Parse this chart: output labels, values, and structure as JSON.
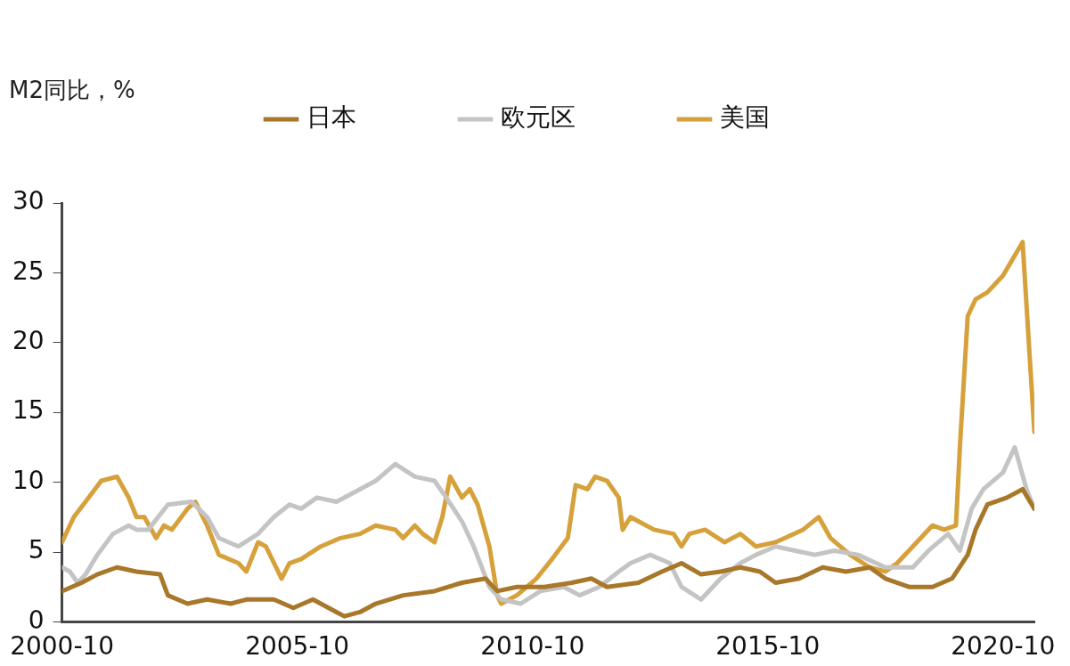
{
  "chart_data": {
    "type": "line",
    "ylabel": "M2同比，%",
    "legend": "top",
    "grid": false,
    "marker": "none",
    "line_style": "solid",
    "xlim": [
      "2000-10",
      "2021-06"
    ],
    "xticks": [
      "2000-10",
      "2005-10",
      "2010-10",
      "2015-10",
      "2020-10"
    ],
    "ylim": [
      0,
      30
    ],
    "yticks": [
      0,
      5,
      10,
      15,
      20,
      25,
      30
    ],
    "series": [
      {
        "name": "日本",
        "color": "#a8772a",
        "x": [
          "2000-10",
          "2001-03",
          "2001-07",
          "2001-12",
          "2002-05",
          "2002-11",
          "2003-01",
          "2003-06",
          "2003-11",
          "2004-05",
          "2004-09",
          "2005-04",
          "2005-09",
          "2006-02",
          "2006-08",
          "2006-10",
          "2007-02",
          "2007-06",
          "2008-01",
          "2008-09",
          "2009-04",
          "2009-10",
          "2010-01",
          "2010-06",
          "2011-01",
          "2011-08",
          "2012-01",
          "2012-05",
          "2013-01",
          "2013-07",
          "2013-12",
          "2014-05",
          "2014-10",
          "2015-03",
          "2015-08",
          "2015-12",
          "2016-06",
          "2016-12",
          "2017-06",
          "2017-12",
          "2018-04",
          "2018-10",
          "2019-04",
          "2019-09",
          "2020-01",
          "2020-03",
          "2020-06",
          "2020-11",
          "2021-03",
          "2021-06"
        ],
        "values": [
          2.2,
          2.8,
          3.4,
          3.9,
          3.6,
          3.4,
          1.9,
          1.3,
          1.6,
          1.3,
          1.6,
          1.6,
          1.0,
          1.6,
          0.7,
          0.4,
          0.7,
          1.3,
          1.9,
          2.2,
          2.8,
          3.1,
          2.2,
          2.5,
          2.5,
          2.8,
          3.1,
          2.5,
          2.8,
          3.6,
          4.2,
          3.4,
          3.6,
          3.9,
          3.6,
          2.8,
          3.1,
          3.9,
          3.6,
          3.9,
          3.1,
          2.5,
          2.5,
          3.1,
          4.8,
          6.6,
          8.4,
          8.9,
          9.5,
          8.1
        ]
      },
      {
        "name": "欧元区",
        "color": "#c4c4c4",
        "x": [
          "2000-10",
          "2000-12",
          "2001-02",
          "2001-04",
          "2001-07",
          "2001-11",
          "2002-03",
          "2002-05",
          "2002-08",
          "2003-01",
          "2003-07",
          "2003-11",
          "2004-02",
          "2004-07",
          "2004-12",
          "2005-04",
          "2005-08",
          "2005-11",
          "2006-03",
          "2006-08",
          "2007-02",
          "2007-06",
          "2007-11",
          "2008-04",
          "2008-09",
          "2008-12",
          "2009-04",
          "2009-07",
          "2009-11",
          "2010-02",
          "2010-07",
          "2010-12",
          "2011-06",
          "2011-10",
          "2012-03",
          "2012-08",
          "2012-11",
          "2013-04",
          "2013-09",
          "2013-12",
          "2014-05",
          "2014-10",
          "2015-03",
          "2015-07",
          "2015-12",
          "2016-05",
          "2016-10",
          "2017-03",
          "2017-09",
          "2018-04",
          "2018-11",
          "2019-03",
          "2019-08",
          "2019-11",
          "2020-02",
          "2020-05",
          "2020-10",
          "2021-01",
          "2021-04",
          "2021-06"
        ],
        "values": [
          3.9,
          3.6,
          2.8,
          3.4,
          4.8,
          6.3,
          6.9,
          6.6,
          6.6,
          8.4,
          8.6,
          7.5,
          6.0,
          5.4,
          6.3,
          7.5,
          8.4,
          8.1,
          8.9,
          8.6,
          9.5,
          10.1,
          11.3,
          10.4,
          10.1,
          8.9,
          7.2,
          5.4,
          2.5,
          1.6,
          1.3,
          2.2,
          2.5,
          1.9,
          2.5,
          3.6,
          4.2,
          4.8,
          4.2,
          2.5,
          1.6,
          3.1,
          4.2,
          4.8,
          5.4,
          5.1,
          4.8,
          5.1,
          4.8,
          3.9,
          3.9,
          5.1,
          6.3,
          5.1,
          8.1,
          9.5,
          10.7,
          12.5,
          9.5,
          8.1
        ]
      },
      {
        "name": "美国",
        "color": "#d6a03a",
        "x": [
          "2000-10",
          "2001-01",
          "2001-04",
          "2001-08",
          "2001-12",
          "2002-03",
          "2002-05",
          "2002-07",
          "2002-10",
          "2002-12",
          "2003-02",
          "2003-06",
          "2003-08",
          "2003-11",
          "2004-02",
          "2004-07",
          "2004-09",
          "2004-12",
          "2005-02",
          "2005-06",
          "2005-08",
          "2005-11",
          "2006-04",
          "2006-09",
          "2007-02",
          "2007-06",
          "2007-11",
          "2008-01",
          "2008-04",
          "2008-06",
          "2008-09",
          "2008-11",
          "2009-01",
          "2009-04",
          "2009-06",
          "2009-08",
          "2009-11",
          "2010-01",
          "2010-02",
          "2010-06",
          "2010-11",
          "2011-03",
          "2011-07",
          "2011-09",
          "2011-12",
          "2012-02",
          "2012-05",
          "2012-08",
          "2012-09",
          "2012-11",
          "2013-01",
          "2013-05",
          "2013-10",
          "2013-12",
          "2014-02",
          "2014-06",
          "2014-11",
          "2015-03",
          "2015-07",
          "2015-12",
          "2016-07",
          "2016-11",
          "2017-02",
          "2017-07",
          "2017-12",
          "2018-04",
          "2018-07",
          "2018-11",
          "2019-04",
          "2019-07",
          "2019-10",
          "2019-11",
          "2020-01",
          "2020-03",
          "2020-06",
          "2020-10",
          "2021-03",
          "2021-06"
        ],
        "values": [
          5.7,
          7.5,
          8.6,
          10.1,
          10.4,
          8.9,
          7.5,
          7.5,
          6.0,
          6.9,
          6.6,
          8.1,
          8.6,
          6.9,
          4.8,
          4.2,
          3.6,
          5.7,
          5.4,
          3.1,
          4.2,
          4.5,
          5.4,
          6.0,
          6.3,
          6.9,
          6.6,
          6.0,
          6.9,
          6.3,
          5.7,
          7.5,
          10.4,
          8.9,
          9.5,
          8.4,
          5.4,
          1.9,
          1.3,
          1.9,
          3.1,
          4.5,
          6.0,
          9.8,
          9.5,
          10.4,
          10.1,
          8.9,
          6.6,
          7.5,
          7.2,
          6.6,
          6.3,
          5.4,
          6.3,
          6.6,
          5.7,
          6.3,
          5.4,
          5.7,
          6.6,
          7.5,
          6.0,
          4.8,
          3.9,
          3.6,
          4.2,
          5.4,
          6.9,
          6.6,
          6.9,
          12.5,
          21.9,
          23.1,
          23.6,
          24.8,
          27.2,
          13.6
        ]
      }
    ]
  }
}
